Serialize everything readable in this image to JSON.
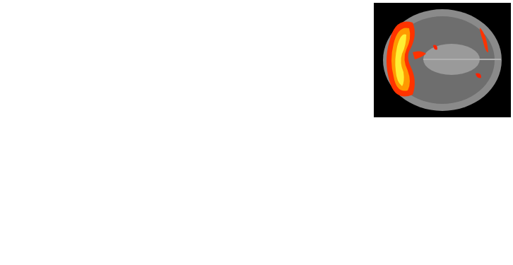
{
  "chart_data": {
    "type": "surface",
    "z": [
      [
        0,
        0,
        0,
        0,
        0,
        0,
        0,
        0,
        0,
        0,
        0,
        0,
        0,
        0,
        0
      ],
      [
        0,
        0,
        0,
        0,
        0,
        0,
        0,
        0,
        0,
        0,
        0,
        0,
        0,
        0,
        0
      ],
      [
        0,
        0,
        0,
        0.1,
        0.1,
        0,
        0,
        -0.3,
        0,
        0,
        0,
        0,
        0,
        0,
        0
      ],
      [
        0,
        0,
        0.2,
        0.4,
        0.3,
        0.2,
        0.3,
        0,
        0,
        0,
        0,
        0,
        0,
        0,
        0
      ],
      [
        0,
        0,
        0.4,
        1.0,
        0.8,
        0.6,
        0.9,
        0.4,
        0.2,
        0.1,
        0.1,
        0.2,
        0.3,
        0.1,
        0
      ],
      [
        0,
        0.1,
        0.8,
        1.8,
        1.4,
        1.2,
        1.8,
        0.8,
        0.6,
        0.4,
        0.5,
        0.8,
        0.9,
        0.3,
        0
      ],
      [
        0,
        0.2,
        1.2,
        2.6,
        1.9,
        1.8,
        2.9,
        1.2,
        0.9,
        0.8,
        0.9,
        1.0,
        1.1,
        0.4,
        0
      ],
      [
        0,
        0.3,
        1.8,
        3.8,
        2.3,
        2.2,
        3.9,
        1.5,
        1.2,
        1.3,
        1.4,
        1.2,
        0.9,
        0.4,
        0
      ],
      [
        0,
        0.4,
        2.5,
        5.2,
        2.2,
        2.0,
        4.3,
        1.6,
        1.4,
        1.7,
        1.8,
        1.5,
        1.0,
        0.5,
        0
      ],
      [
        0,
        0.4,
        2.8,
        6.6,
        2.4,
        1.6,
        3.2,
        1.4,
        1.5,
        1.9,
        1.9,
        1.6,
        1.3,
        0.6,
        0
      ],
      [
        0,
        0.3,
        2.0,
        4.6,
        1.8,
        1.1,
        1.6,
        1.2,
        1.4,
        1.7,
        1.5,
        1.2,
        1.0,
        0.5,
        0
      ],
      [
        0,
        0.2,
        1.1,
        2.2,
        1.0,
        0.8,
        1.0,
        1.0,
        1.2,
        1.3,
        1.1,
        0.9,
        0.7,
        0.3,
        0
      ],
      [
        0,
        0.1,
        0.5,
        0.8,
        0.5,
        0.4,
        0.5,
        0.6,
        0.8,
        0.8,
        0.6,
        0.4,
        0.3,
        0.1,
        0
      ],
      [
        0,
        0,
        0.1,
        0.2,
        0.1,
        0.1,
        0.1,
        0.2,
        0.3,
        0.2,
        0.2,
        0.1,
        0.1,
        0,
        0
      ],
      [
        0,
        0,
        0,
        0,
        0,
        0,
        0,
        0,
        0,
        0,
        0,
        0,
        0,
        0,
        0
      ]
    ],
    "threshold": 1.3,
    "zlim": [
      -0.5,
      7
    ],
    "tick_labels": false
  }
}
